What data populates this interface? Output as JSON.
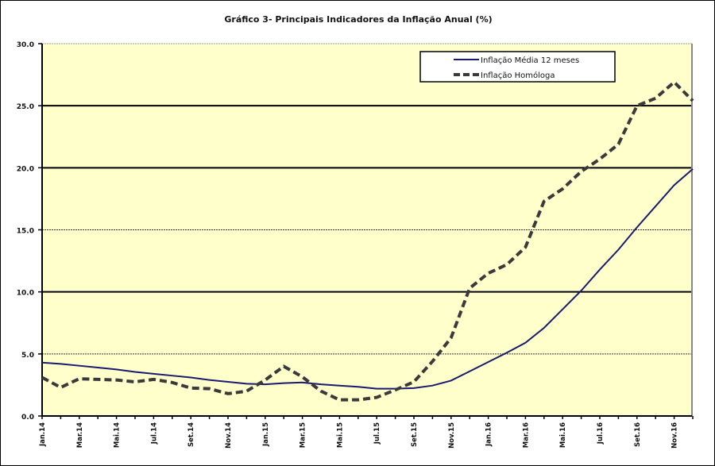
{
  "chart_data": {
    "type": "line",
    "title": "Gráfico 3- Principais Indicadores da Inflação Anual (%)",
    "xlabel": "",
    "ylabel": "",
    "ylim": [
      0,
      30
    ],
    "yticks": [
      "0.0",
      "5.0",
      "10.0",
      "15.0",
      "20.0",
      "25.0",
      "30.0"
    ],
    "grid": true,
    "legend": "top-right",
    "background_color": "#FFFFCC",
    "x": [
      "Jan.14",
      "Fev.14",
      "Mar.14",
      "Abr.14",
      "Mai.14",
      "Jun.14",
      "Jul.14",
      "Ago.14",
      "Set.14",
      "Out.14",
      "Nov.14",
      "Dez.14",
      "Jan.15",
      "Fev.15",
      "Mar.15",
      "Abr.15",
      "Mai.15",
      "Jun.15",
      "Jul.15",
      "Ago.15",
      "Set.15",
      "Out.15",
      "Nov.15",
      "Dez.15",
      "Jan.16",
      "Fev.16",
      "Mar.16",
      "Abr.16",
      "Mai.16",
      "Jun.16",
      "Jul.16",
      "Ago.16",
      "Set.16",
      "Out.16",
      "Nov.16",
      "Dez.16"
    ],
    "xtick_labels": [
      "Jan.14",
      "Mar.14",
      "Mai.14",
      "Jul.14",
      "Set.14",
      "Nov.14",
      "Jan.15",
      "Mar.15",
      "Mai.15",
      "Jul.15",
      "Set.15",
      "Nov.15",
      "Jan.16",
      "Mar.16",
      "Mai.16",
      "Jul.16",
      "Set.16",
      "Nov.16"
    ],
    "series": [
      {
        "name": "Inflação Média 12 meses",
        "color": "#1a1a6e",
        "style": "solid",
        "values": [
          4.3,
          4.2,
          4.05,
          3.9,
          3.75,
          3.55,
          3.4,
          3.25,
          3.1,
          2.9,
          2.75,
          2.6,
          2.55,
          2.65,
          2.7,
          2.55,
          2.45,
          2.35,
          2.2,
          2.2,
          2.25,
          2.45,
          2.85,
          3.6,
          4.35,
          5.1,
          5.9,
          7.1,
          8.6,
          10.1,
          11.8,
          13.4,
          15.2,
          16.9,
          18.6,
          19.9
        ]
      },
      {
        "name": "Inflação Homóloga",
        "color": "#3a3a3a",
        "style": "dashed",
        "values": [
          3.1,
          2.3,
          3.0,
          2.95,
          2.9,
          2.75,
          2.95,
          2.7,
          2.25,
          2.2,
          1.8,
          2.0,
          2.9,
          4.0,
          3.15,
          2.0,
          1.3,
          1.3,
          1.5,
          2.1,
          2.75,
          4.4,
          6.3,
          10.3,
          11.5,
          12.2,
          13.6,
          17.3,
          18.3,
          19.7,
          20.7,
          21.9,
          25.0,
          25.6,
          26.9,
          25.4
        ]
      }
    ]
  }
}
